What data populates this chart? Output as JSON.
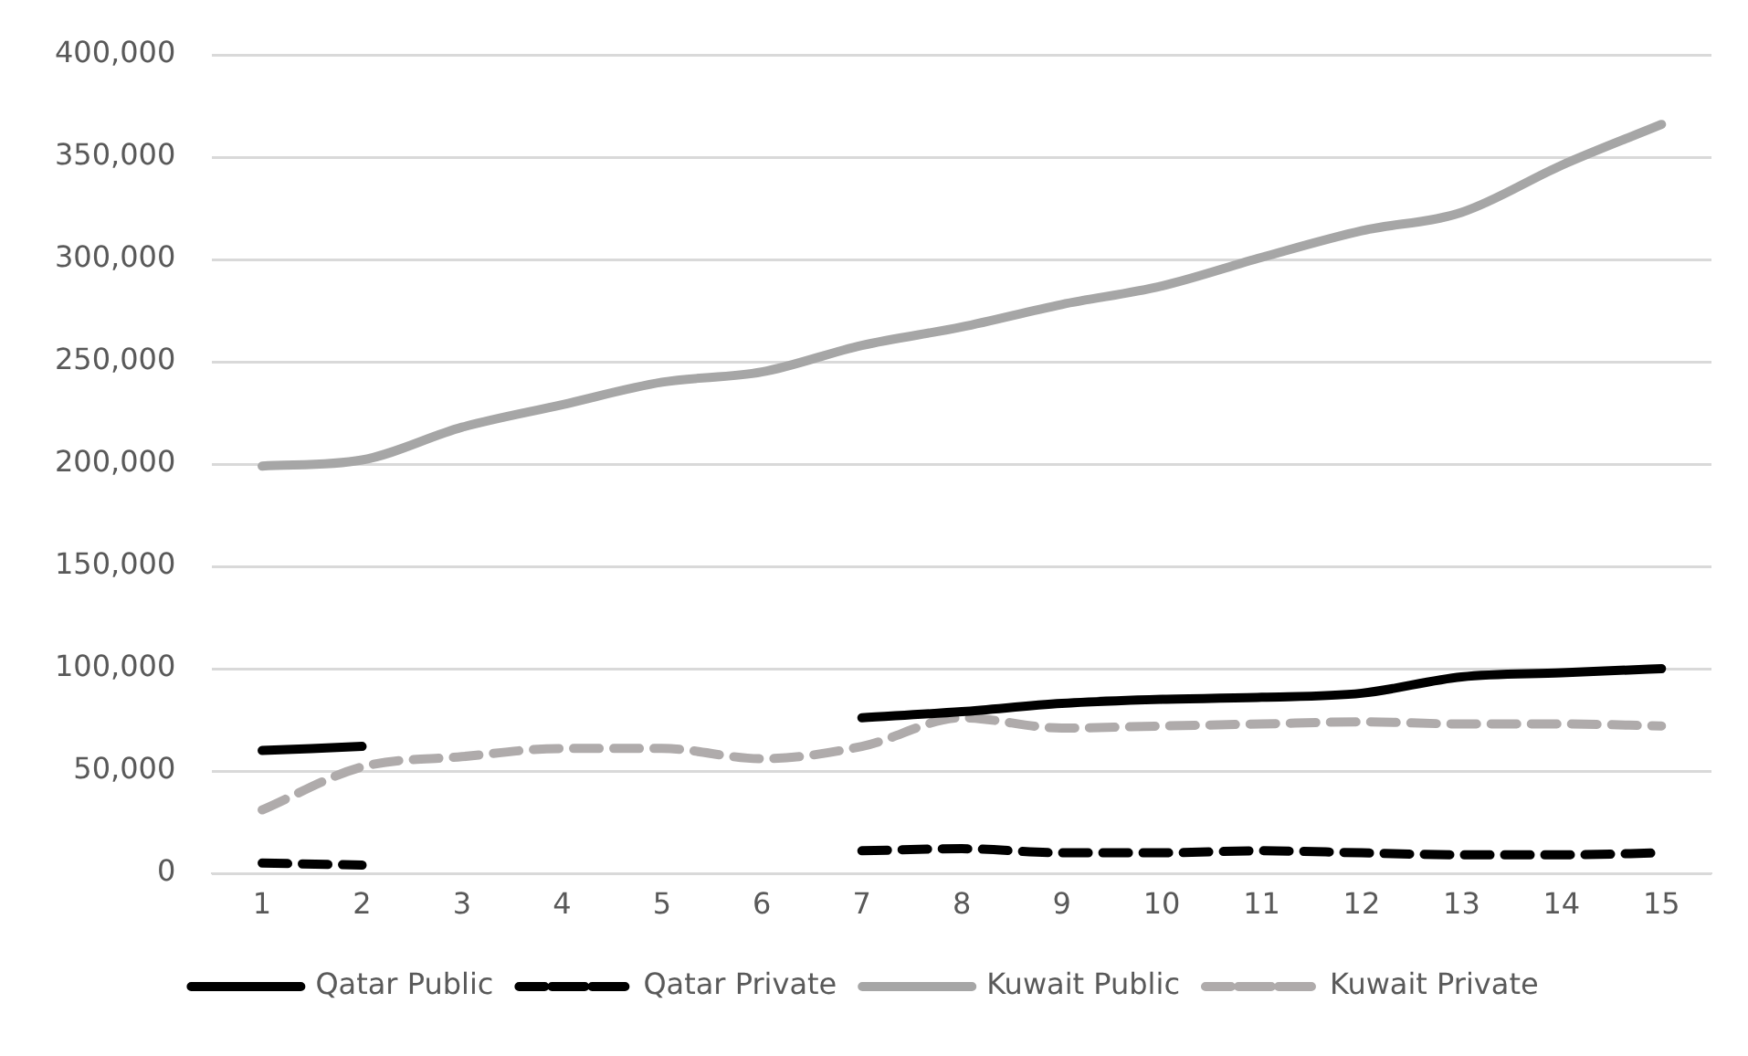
{
  "chart_data": {
    "type": "line",
    "categories": [
      "1",
      "2",
      "3",
      "4",
      "5",
      "6",
      "7",
      "8",
      "9",
      "10",
      "11",
      "12",
      "13",
      "14",
      "15"
    ],
    "series": [
      {
        "name": "Qatar Public",
        "color": "#000000",
        "line_style": "solid",
        "values": [
          60000,
          62000,
          null,
          null,
          null,
          null,
          76000,
          79000,
          83000,
          85000,
          86000,
          88000,
          96000,
          98000,
          100000
        ]
      },
      {
        "name": "Qatar Private",
        "color": "#000000",
        "line_style": "dashed",
        "values": [
          5000,
          4000,
          null,
          null,
          null,
          null,
          11000,
          12000,
          10000,
          10000,
          11000,
          10000,
          9000,
          9000,
          10000
        ]
      },
      {
        "name": "Kuwait Public",
        "color": "#a6a6a6",
        "line_style": "solid",
        "values": [
          199000,
          202000,
          218000,
          229000,
          240000,
          245000,
          258000,
          267000,
          278000,
          287000,
          301000,
          314000,
          323000,
          346000,
          366000
        ]
      },
      {
        "name": "Kuwait Private",
        "color": "#afabab",
        "line_style": "dashed",
        "values": [
          31000,
          52000,
          57000,
          61000,
          61000,
          56000,
          62000,
          76000,
          71000,
          72000,
          73000,
          74000,
          73000,
          73000,
          72000
        ]
      }
    ],
    "ylim": [
      0,
      400000
    ],
    "yticks": [
      {
        "value": 0,
        "label": "0"
      },
      {
        "value": 50000,
        "label": "50,000"
      },
      {
        "value": 100000,
        "label": "100,000"
      },
      {
        "value": 150000,
        "label": "150,000"
      },
      {
        "value": 200000,
        "label": "200,000"
      },
      {
        "value": 250000,
        "label": "250,000"
      },
      {
        "value": 300000,
        "label": "300,000"
      },
      {
        "value": 350000,
        "label": "350,000"
      },
      {
        "value": 400000,
        "label": "400,000"
      }
    ],
    "grid": "y",
    "legend": "bottom",
    "marker": "none"
  }
}
